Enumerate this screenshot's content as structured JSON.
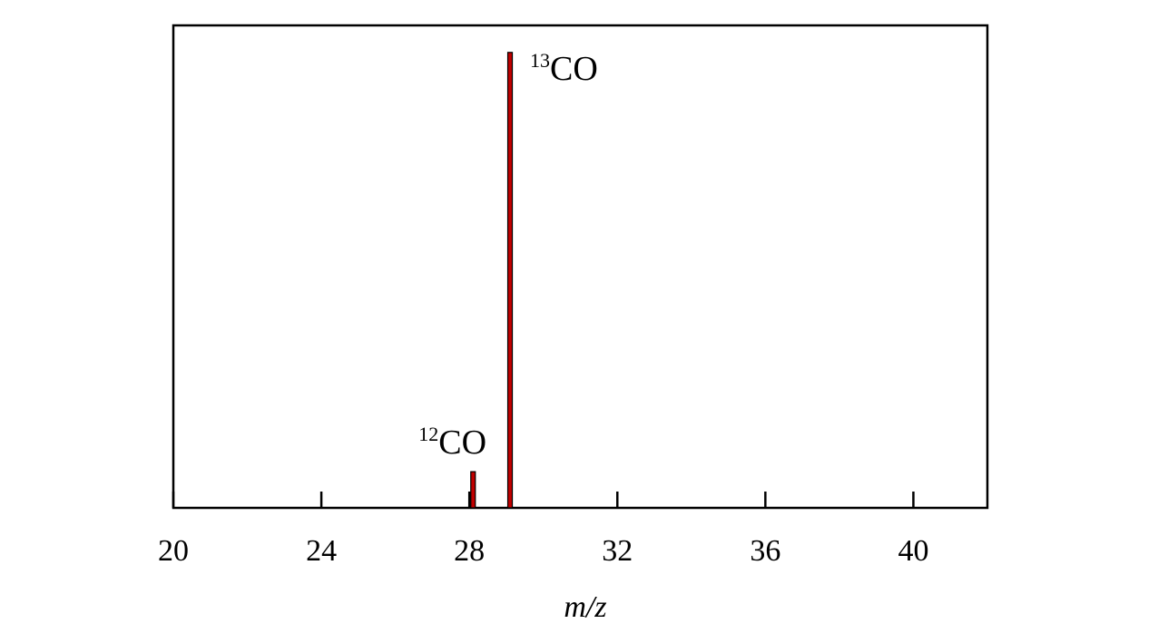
{
  "chart_data": {
    "type": "stem",
    "x_label": "m/z",
    "x": [
      28.1,
      29.1
    ],
    "values": [
      7.5,
      94.4
    ],
    "labels": [
      {
        "sup": "12",
        "base": "CO"
      },
      {
        "sup": "13",
        "base": "CO"
      }
    ],
    "color": "#c00000",
    "edge_color": "#000000",
    "xlim": [
      20,
      42
    ],
    "xticks": [
      20,
      24,
      28,
      32,
      36,
      40
    ],
    "ylim": [
      0,
      100
    ]
  }
}
